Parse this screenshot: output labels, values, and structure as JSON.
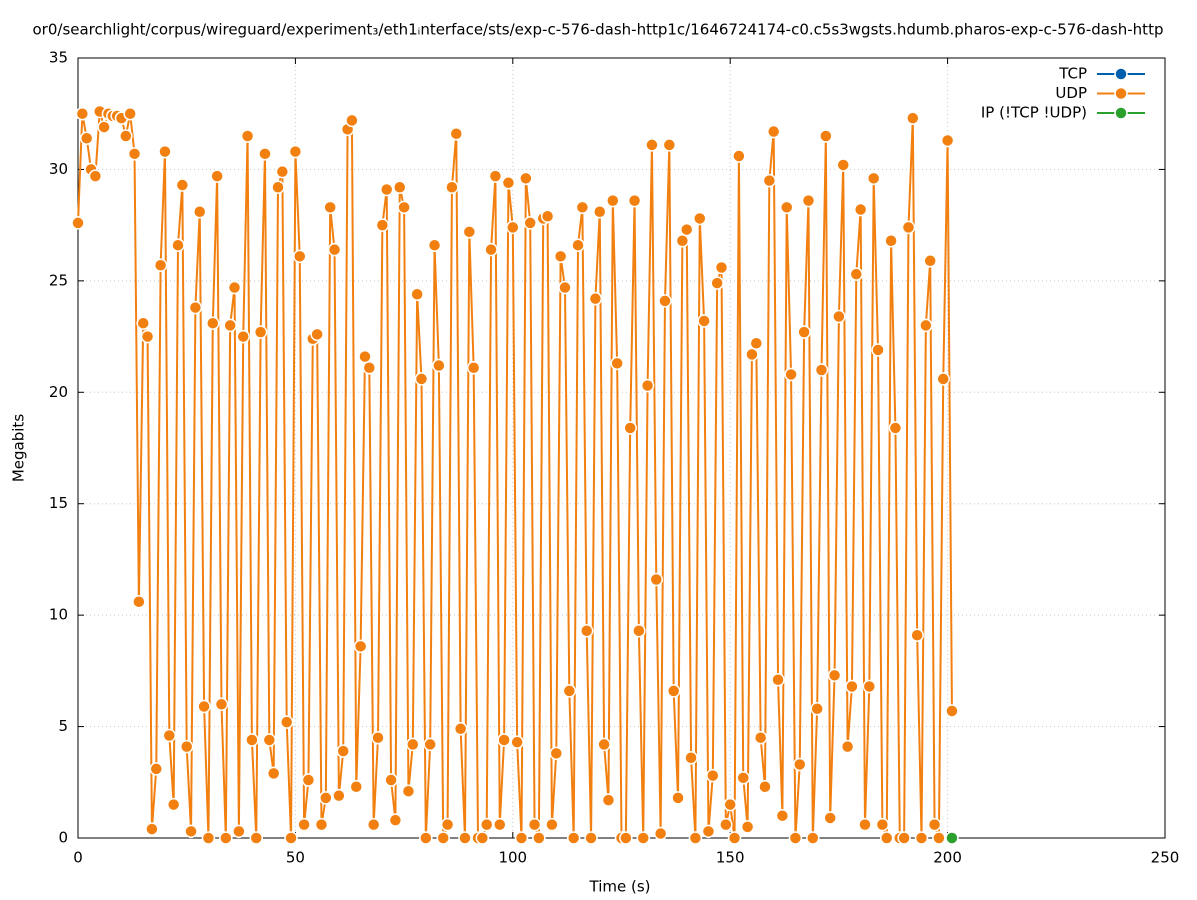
{
  "chart_data": {
    "type": "line",
    "title": "or0/searchlight/corpus/wireguard/experiment₃/eth1ᵢnterface/sts/exp-c-576-dash-http1c/1646724174-c0.c5s3wgsts.hdumb.pharos-exp-c-576-dash-http",
    "xlabel": "Time (s)",
    "ylabel": "Megabits",
    "xlim": [
      0,
      250
    ],
    "xticks": [
      0,
      50,
      100,
      150,
      200,
      250
    ],
    "ylim": [
      0,
      35
    ],
    "yticks": [
      0,
      5,
      10,
      15,
      20,
      25,
      30,
      35
    ],
    "grid": true,
    "legend": "upper right",
    "series": [
      {
        "name": "TCP",
        "color": "#0060ad",
        "x": [],
        "values": []
      },
      {
        "name": "UDP",
        "color": "#f28010",
        "x": [
          0,
          1,
          2,
          3,
          4,
          5,
          6,
          7,
          8,
          9,
          10,
          11,
          12,
          13,
          14,
          15,
          16,
          17,
          18,
          19,
          20,
          21,
          22,
          23,
          24,
          25,
          26,
          27,
          28,
          29,
          30,
          31,
          32,
          33,
          34,
          35,
          36,
          37,
          38,
          39,
          40,
          41,
          42,
          43,
          44,
          45,
          46,
          47,
          48,
          49,
          50,
          51,
          52,
          53,
          54,
          55,
          56,
          57,
          58,
          59,
          60,
          61,
          62,
          63,
          64,
          65,
          66,
          67,
          68,
          69,
          70,
          71,
          72,
          73,
          74,
          75,
          76,
          77,
          78,
          79,
          80,
          81,
          82,
          83,
          84,
          85,
          86,
          87,
          88,
          89,
          90,
          91,
          92,
          93,
          94,
          95,
          96,
          97,
          98,
          99,
          100,
          101,
          102,
          103,
          104,
          105,
          106,
          107,
          108,
          109,
          110,
          111,
          112,
          113,
          114,
          115,
          116,
          117,
          118,
          119,
          120,
          121,
          122,
          123,
          124,
          125,
          126,
          127,
          128,
          129,
          130,
          131,
          132,
          133,
          134,
          135,
          136,
          137,
          138,
          139,
          140,
          141,
          142,
          143,
          144,
          145,
          146,
          147,
          148,
          149,
          150,
          151,
          152,
          153,
          154,
          155,
          156,
          157,
          158,
          159,
          160,
          161,
          162,
          163,
          164,
          165,
          166,
          167,
          168,
          169,
          170,
          171,
          172,
          173,
          174,
          175,
          176,
          177,
          178,
          179,
          180,
          181,
          182,
          183,
          184,
          185,
          186,
          187,
          188,
          189,
          190,
          191,
          192,
          193,
          194,
          195,
          196,
          197,
          198,
          199,
          200,
          201
        ],
        "values": [
          27.6,
          32.5,
          31.4,
          30.0,
          29.7,
          32.6,
          31.9,
          32.5,
          32.4,
          32.4,
          32.3,
          31.5,
          32.5,
          30.7,
          10.6,
          23.1,
          22.5,
          0.4,
          3.1,
          25.7,
          30.8,
          4.6,
          1.5,
          26.6,
          29.3,
          4.1,
          0.3,
          23.8,
          28.1,
          5.9,
          0,
          23.1,
          29.7,
          6.0,
          0,
          23.0,
          24.7,
          0.3,
          22.5,
          31.5,
          4.4,
          0,
          22.7,
          30.7,
          4.4,
          2.9,
          29.2,
          29.9,
          5.2,
          0,
          30.8,
          26.1,
          0.6,
          2.6,
          22.4,
          22.6,
          0.6,
          1.8,
          28.3,
          26.4,
          1.9,
          3.9,
          31.8,
          32.2,
          2.3,
          8.6,
          21.6,
          21.1,
          0.6,
          4.5,
          27.5,
          29.1,
          2.6,
          0.8,
          29.2,
          28.3,
          2.1,
          4.2,
          24.4,
          20.6,
          0,
          4.2,
          26.6,
          21.2,
          0,
          0.6,
          29.2,
          31.6,
          4.9,
          0,
          27.2,
          21.1,
          0,
          0,
          0.6,
          26.4,
          29.7,
          0.6,
          4.4,
          29.4,
          27.4,
          4.3,
          0,
          29.6,
          27.6,
          0.6,
          0,
          27.8,
          27.9,
          0.6,
          3.8,
          26.1,
          24.7,
          6.6,
          0,
          26.6,
          28.3,
          9.3,
          0,
          24.2,
          28.1,
          4.2,
          1.7,
          28.6,
          21.3,
          0,
          0,
          18.4,
          28.6,
          9.3,
          0,
          20.3,
          31.1,
          11.6,
          0.2,
          24.1,
          31.1,
          6.6,
          1.8,
          26.8,
          27.3,
          3.6,
          0,
          27.8,
          23.2,
          0.3,
          2.8,
          24.9,
          25.6,
          0.6,
          1.5,
          0,
          30.6,
          2.7,
          0.5,
          21.7,
          22.2,
          4.5,
          2.3,
          29.5,
          31.7,
          7.1,
          1.0,
          28.3,
          20.8,
          0,
          3.3,
          22.7,
          28.6,
          0,
          5.8,
          21.0,
          31.5,
          0.9,
          7.3,
          23.4,
          30.2,
          4.1,
          6.8,
          25.3,
          28.2,
          0.6,
          6.8,
          29.6,
          21.9,
          0.6,
          0,
          26.8,
          18.4,
          0,
          0,
          27.4,
          32.3,
          9.1,
          0,
          23.0,
          25.9,
          0.6,
          0,
          20.6,
          31.3,
          5.7
        ]
      },
      {
        "name": "IP (!TCP  !UDP)",
        "color": "#2ca02c",
        "x": [
          201
        ],
        "values": [
          0
        ]
      }
    ]
  }
}
